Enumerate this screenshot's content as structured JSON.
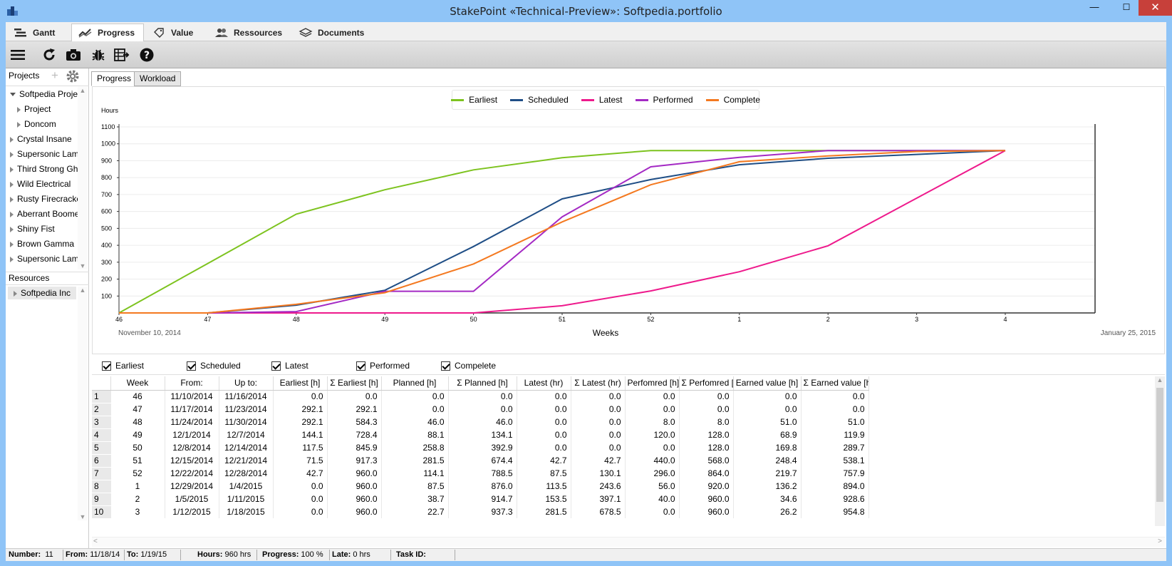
{
  "window": {
    "title": "StakePoint  «Technical-Preview»:  Softpedia.portfolio",
    "min": "—",
    "max": "☐",
    "close": "✕"
  },
  "tabs": [
    {
      "label": "Gantt",
      "icon": "gantt-icon"
    },
    {
      "label": "Progress",
      "icon": "progress-icon"
    },
    {
      "label": "Value",
      "icon": "tag-icon"
    },
    {
      "label": "Ressources",
      "icon": "people-icon"
    },
    {
      "label": "Documents",
      "icon": "layers-icon"
    }
  ],
  "toolbar": [
    "menu-icon",
    "refresh-icon",
    "camera-icon",
    "bug-icon",
    "export-icon",
    "help-icon"
  ],
  "sidebar": {
    "projects_label": "Projects",
    "resources_label": "Resources",
    "tree": [
      {
        "label": "Softpedia Projects",
        "indent": 0,
        "open": true
      },
      {
        "label": "Project",
        "indent": 1,
        "open": false
      },
      {
        "label": "Doncom",
        "indent": 1,
        "open": false
      },
      {
        "label": "Crystal Insane",
        "indent": 0,
        "open": false
      },
      {
        "label": "Supersonic Lamp",
        "indent": 0,
        "open": false
      },
      {
        "label": "Third Strong Ghost",
        "indent": 0,
        "open": false
      },
      {
        "label": "Wild Electrical",
        "indent": 0,
        "open": false
      },
      {
        "label": "Rusty Firecracker",
        "indent": 0,
        "open": false
      },
      {
        "label": "Aberrant Boomerang",
        "indent": 0,
        "open": false
      },
      {
        "label": "Shiny Fist",
        "indent": 0,
        "open": false
      },
      {
        "label": "Brown Gamma",
        "indent": 0,
        "open": false
      },
      {
        "label": "Supersonic Lamp",
        "indent": 0,
        "open": false
      }
    ],
    "resources": [
      {
        "label": "Softpedia Inc"
      }
    ]
  },
  "subtabs": [
    "Progress",
    "Workload"
  ],
  "chart_data": {
    "type": "line",
    "ylabel": "Hours",
    "xlabel": "Weeks",
    "start_label": "November 10, 2014",
    "end_label": "January 25, 2015",
    "categories": [
      "46",
      "47",
      "48",
      "49",
      "50",
      "51",
      "52",
      "1",
      "2",
      "3",
      "4"
    ],
    "yticks": [
      100,
      200,
      300,
      400,
      500,
      600,
      700,
      800,
      900,
      1000,
      1100
    ],
    "ylim": [
      0,
      1100
    ],
    "grid": true,
    "legend_position": "top-center",
    "series": [
      {
        "name": "Earliest",
        "color": "#7dc31f",
        "values": [
          0,
          292.1,
          584.3,
          728.4,
          845.9,
          917.3,
          960,
          960,
          960,
          960,
          960
        ]
      },
      {
        "name": "Scheduled",
        "color": "#1f4e86",
        "values": [
          0,
          0,
          46,
          134.1,
          392.9,
          674.4,
          788.5,
          876,
          914.7,
          937.3,
          960
        ]
      },
      {
        "name": "Latest",
        "color": "#ee1a8c",
        "values": [
          0,
          0,
          0,
          0,
          0,
          42.7,
          130.1,
          243.6,
          397.1,
          678.5,
          960
        ]
      },
      {
        "name": "Performed",
        "color": "#a42ac4",
        "values": [
          0,
          0,
          8,
          128,
          128,
          568,
          864,
          920,
          960,
          960,
          960
        ]
      },
      {
        "name": "Complete",
        "color": "#f47920",
        "values": [
          0,
          0,
          51,
          119.9,
          289.7,
          538.1,
          757.9,
          894,
          928.6,
          954.8,
          960
        ]
      }
    ]
  },
  "checkboxes": [
    "Earliest",
    "Scheduled",
    "Latest",
    "Performed",
    "Compelete"
  ],
  "table": {
    "columns": [
      "Week",
      "From:",
      "Up to:",
      "Earliest [h]",
      "Σ Earliest [h]",
      "Planned [h]",
      "Σ Planned [h]",
      "Latest (hr)",
      "Σ Latest (hr)",
      "Perfomred [h]",
      "Σ Perfomred [h]",
      "Earned value [h]",
      "Σ Earned value [h]"
    ],
    "rows": [
      [
        "1",
        "46",
        "11/10/2014",
        "11/16/2014",
        "0.0",
        "0.0",
        "0.0",
        "0.0",
        "0.0",
        "0.0",
        "0.0",
        "0.0",
        "0.0",
        "0.0"
      ],
      [
        "2",
        "47",
        "11/17/2014",
        "11/23/2014",
        "292.1",
        "292.1",
        "0.0",
        "0.0",
        "0.0",
        "0.0",
        "0.0",
        "0.0",
        "0.0",
        "0.0"
      ],
      [
        "3",
        "48",
        "11/24/2014",
        "11/30/2014",
        "292.1",
        "584.3",
        "46.0",
        "46.0",
        "0.0",
        "0.0",
        "8.0",
        "8.0",
        "51.0",
        "51.0"
      ],
      [
        "4",
        "49",
        "12/1/2014",
        "12/7/2014",
        "144.1",
        "728.4",
        "88.1",
        "134.1",
        "0.0",
        "0.0",
        "120.0",
        "128.0",
        "68.9",
        "119.9"
      ],
      [
        "5",
        "50",
        "12/8/2014",
        "12/14/2014",
        "117.5",
        "845.9",
        "258.8",
        "392.9",
        "0.0",
        "0.0",
        "0.0",
        "128.0",
        "169.8",
        "289.7"
      ],
      [
        "6",
        "51",
        "12/15/2014",
        "12/21/2014",
        "71.5",
        "917.3",
        "281.5",
        "674.4",
        "42.7",
        "42.7",
        "440.0",
        "568.0",
        "248.4",
        "538.1"
      ],
      [
        "7",
        "52",
        "12/22/2014",
        "12/28/2014",
        "42.7",
        "960.0",
        "114.1",
        "788.5",
        "87.5",
        "130.1",
        "296.0",
        "864.0",
        "219.7",
        "757.9"
      ],
      [
        "8",
        "1",
        "12/29/2014",
        "1/4/2015",
        "0.0",
        "960.0",
        "87.5",
        "876.0",
        "113.5",
        "243.6",
        "56.0",
        "920.0",
        "136.2",
        "894.0"
      ],
      [
        "9",
        "2",
        "1/5/2015",
        "1/11/2015",
        "0.0",
        "960.0",
        "38.7",
        "914.7",
        "153.5",
        "397.1",
        "40.0",
        "960.0",
        "34.6",
        "928.6"
      ],
      [
        "10",
        "3",
        "1/12/2015",
        "1/18/2015",
        "0.0",
        "960.0",
        "22.7",
        "937.3",
        "281.5",
        "678.5",
        "0.0",
        "960.0",
        "26.2",
        "954.8"
      ]
    ]
  },
  "status": {
    "number_label": "Number:",
    "number": "11",
    "from_label": "From:",
    "from": "11/18/14",
    "to_label": "To:",
    "to": "1/19/15",
    "hours_label": "Hours:",
    "hours": "960 hrs",
    "progress_label": "Progress:",
    "progress": "100 %",
    "late_label": "Late:",
    "late": "0 hrs",
    "taskid_label": "Task ID:",
    "taskid": ""
  }
}
